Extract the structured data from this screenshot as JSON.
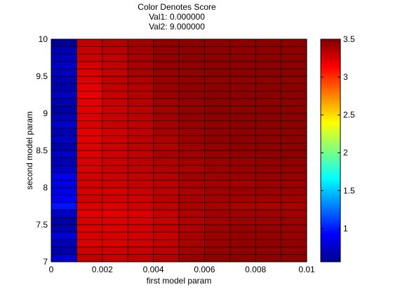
{
  "chart_data": {
    "type": "heatmap",
    "title": [
      "Color Denotes Score",
      "Val1: 0.000000",
      "Val2: 9.000000"
    ],
    "xlabel": "first model param",
    "ylabel": "second model param",
    "xlim": [
      0,
      0.01
    ],
    "ylim": [
      7,
      10
    ],
    "x_ticks": [
      "0",
      "0.002",
      "0.004",
      "0.006",
      "0.008",
      "0.01"
    ],
    "y_ticks": [
      "7",
      "7.5",
      "8",
      "8.5",
      "9",
      "9.5",
      "10"
    ],
    "x_edges": [
      0,
      0.001,
      0.002,
      0.003,
      0.004,
      0.005,
      0.006,
      0.007,
      0.008,
      0.009,
      0.01
    ],
    "y_edges": [
      7.0,
      7.1,
      7.2,
      7.3,
      7.4,
      7.5,
      7.6,
      7.7,
      7.8,
      7.9,
      8.0,
      8.1,
      8.2,
      8.3,
      8.4,
      8.5,
      8.6,
      8.7,
      8.8,
      8.9,
      9.0,
      9.1,
      9.2,
      9.3,
      9.4,
      9.5,
      9.6,
      9.7,
      9.8,
      9.9,
      10.0
    ],
    "colorbar": {
      "range": [
        0.56,
        3.5
      ],
      "ticks": [
        "1",
        "1.5",
        "2",
        "2.5",
        "3",
        "3.5"
      ],
      "colormap": "jet"
    },
    "grid": false,
    "values": [
      [
        0.78,
        3.32,
        3.3,
        3.32,
        3.35,
        3.42,
        3.45,
        3.46,
        3.46,
        3.46
      ],
      [
        0.68,
        3.28,
        3.28,
        3.3,
        3.33,
        3.4,
        3.44,
        3.45,
        3.45,
        3.45
      ],
      [
        0.72,
        3.24,
        3.24,
        3.28,
        3.32,
        3.38,
        3.42,
        3.44,
        3.44,
        3.44
      ],
      [
        0.8,
        3.26,
        3.26,
        3.27,
        3.3,
        3.38,
        3.42,
        3.44,
        3.44,
        3.43
      ],
      [
        0.7,
        3.24,
        3.23,
        3.26,
        3.31,
        3.36,
        3.41,
        3.43,
        3.43,
        3.42
      ],
      [
        0.66,
        3.25,
        3.24,
        3.26,
        3.3,
        3.36,
        3.4,
        3.42,
        3.42,
        3.42
      ],
      [
        0.76,
        3.22,
        3.22,
        3.24,
        3.3,
        3.37,
        3.41,
        3.41,
        3.41,
        3.4
      ],
      [
        0.98,
        3.24,
        3.24,
        3.27,
        3.32,
        3.38,
        3.39,
        3.38,
        3.38,
        3.39
      ],
      [
        0.9,
        3.28,
        3.27,
        3.28,
        3.34,
        3.39,
        3.4,
        3.4,
        3.4,
        3.4
      ],
      [
        0.86,
        3.26,
        3.26,
        3.29,
        3.33,
        3.37,
        3.41,
        3.42,
        3.42,
        3.42
      ],
      [
        0.84,
        3.26,
        3.27,
        3.3,
        3.34,
        3.39,
        3.4,
        3.41,
        3.42,
        3.42
      ],
      [
        0.88,
        3.26,
        3.28,
        3.31,
        3.35,
        3.4,
        3.41,
        3.42,
        3.43,
        3.43
      ],
      [
        0.74,
        3.25,
        3.29,
        3.32,
        3.36,
        3.38,
        3.42,
        3.43,
        3.44,
        3.44
      ],
      [
        0.7,
        3.25,
        3.29,
        3.33,
        3.37,
        3.4,
        3.43,
        3.44,
        3.45,
        3.45
      ],
      [
        0.76,
        3.23,
        3.28,
        3.31,
        3.38,
        3.41,
        3.43,
        3.45,
        3.45,
        3.46
      ],
      [
        0.68,
        3.24,
        3.29,
        3.33,
        3.36,
        3.41,
        3.44,
        3.46,
        3.46,
        3.46
      ],
      [
        0.74,
        3.22,
        3.28,
        3.33,
        3.37,
        3.42,
        3.45,
        3.46,
        3.46,
        3.46
      ],
      [
        0.7,
        3.22,
        3.27,
        3.32,
        3.39,
        3.42,
        3.45,
        3.46,
        3.46,
        3.46
      ],
      [
        0.78,
        3.23,
        3.29,
        3.32,
        3.39,
        3.43,
        3.45,
        3.46,
        3.46,
        3.46
      ],
      [
        0.72,
        3.24,
        3.29,
        3.33,
        3.4,
        3.44,
        3.46,
        3.46,
        3.46,
        3.46
      ],
      [
        0.66,
        3.22,
        3.28,
        3.33,
        3.4,
        3.44,
        3.46,
        3.46,
        3.46,
        3.46
      ],
      [
        0.7,
        3.21,
        3.3,
        3.34,
        3.41,
        3.44,
        3.46,
        3.46,
        3.46,
        3.46
      ],
      [
        0.74,
        3.2,
        3.3,
        3.35,
        3.42,
        3.45,
        3.46,
        3.46,
        3.46,
        3.46
      ],
      [
        0.68,
        3.21,
        3.31,
        3.35,
        3.42,
        3.45,
        3.46,
        3.46,
        3.46,
        3.46
      ],
      [
        0.7,
        3.23,
        3.32,
        3.37,
        3.43,
        3.45,
        3.46,
        3.46,
        3.46,
        3.46
      ],
      [
        0.74,
        3.24,
        3.3,
        3.38,
        3.43,
        3.45,
        3.46,
        3.46,
        3.46,
        3.46
      ],
      [
        0.76,
        3.26,
        3.31,
        3.38,
        3.44,
        3.45,
        3.46,
        3.46,
        3.46,
        3.46
      ],
      [
        0.72,
        3.28,
        3.32,
        3.39,
        3.44,
        3.46,
        3.46,
        3.46,
        3.46,
        3.46
      ],
      [
        0.7,
        3.3,
        3.34,
        3.4,
        3.45,
        3.46,
        3.46,
        3.46,
        3.46,
        3.46
      ],
      [
        0.62,
        3.32,
        3.36,
        3.41,
        3.45,
        3.46,
        3.46,
        3.46,
        3.46,
        3.46
      ]
    ]
  }
}
